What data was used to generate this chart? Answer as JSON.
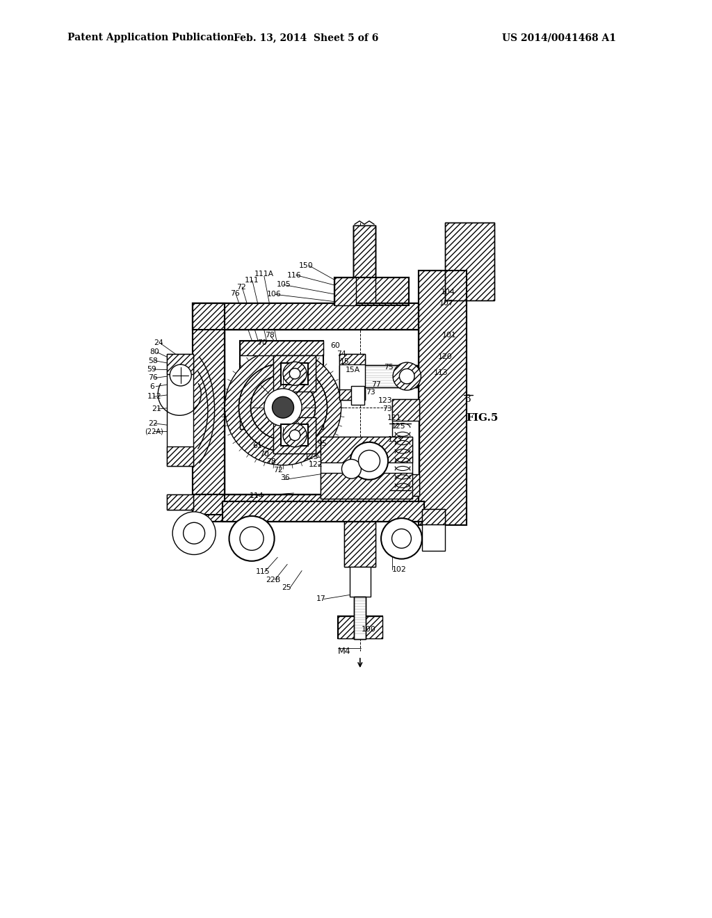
{
  "bg": "#ffffff",
  "header_left": "Patent Application Publication",
  "header_mid": "Feb. 13, 2014  Sheet 5 of 6",
  "header_right": "US 2014/0041468 A1",
  "fig_label": "FIG.5",
  "patent_num": "3"
}
